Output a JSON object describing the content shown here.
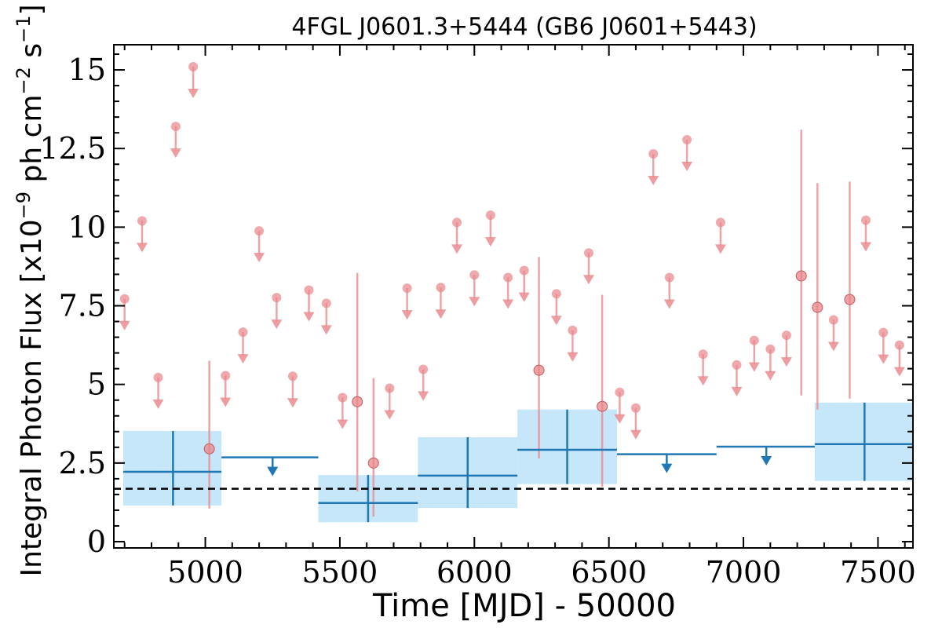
{
  "chart_data": {
    "type": "scatter",
    "title": "4FGL J0601.3+5444 (GB6 J0601+5443)",
    "xlabel": "Time [MJD] - 50000",
    "ylabel": "Integral Photon Flux [x10",
    "ylabel_exponent": "−9",
    "ylabel_units": " ph cm",
    "ylabel_cm_exponent": "−2",
    "ylabel_s": " s",
    "ylabel_s_exponent": "−1",
    "ylabel_close": "]",
    "xlim": [
      4660,
      7630
    ],
    "ylim": [
      -0.2,
      15.8
    ],
    "x_ticks": [
      5000,
      5500,
      6000,
      6500,
      7000,
      7500
    ],
    "x_tick_labels": [
      "5000",
      "5500",
      "6000",
      "6500",
      "7000",
      "7500"
    ],
    "y_ticks": [
      0,
      2.5,
      5,
      7.5,
      10,
      12.5,
      15
    ],
    "y_tick_labels": [
      "0",
      "2.5",
      "5",
      "7.5",
      "10",
      "12.5",
      "15"
    ],
    "reference_line": {
      "y": 1.68,
      "style": "dashed",
      "color": "#000000"
    },
    "colors": {
      "fine": "#e8858a",
      "coarse": "#1f77b4",
      "coarse_band": "#c6e7fa"
    },
    "series": [
      {
        "points": [
          {
            "x": 5015,
            "y": 2.95,
            "yerr_low": 1.05,
            "yerr_high": 5.75
          },
          {
            "x": 5565,
            "y": 4.45,
            "yerr_low": 1.6,
            "yerr_high": 8.55
          },
          {
            "x": 5625,
            "y": 2.5,
            "yerr_low": 0.8,
            "yerr_high": 5.2
          },
          {
            "x": 6240,
            "y": 5.45,
            "yerr_low": 2.65,
            "yerr_high": 9.05
          },
          {
            "x": 6475,
            "y": 4.3,
            "yerr_low": 1.75,
            "yerr_high": 7.85
          },
          {
            "x": 7215,
            "y": 8.45,
            "yerr_low": 4.65,
            "yerr_high": 13.1
          },
          {
            "x": 7275,
            "y": 7.45,
            "yerr_low": 4.2,
            "yerr_high": 11.4
          },
          {
            "x": 7395,
            "y": 7.7,
            "yerr_low": 4.55,
            "yerr_high": 11.45
          }
        ],
        "upper_limits": [
          {
            "x": 4700,
            "y": 7.72
          },
          {
            "x": 4765,
            "y": 10.2
          },
          {
            "x": 4825,
            "y": 5.22
          },
          {
            "x": 4890,
            "y": 13.2
          },
          {
            "x": 4955,
            "y": 15.1
          },
          {
            "x": 5075,
            "y": 5.28
          },
          {
            "x": 5140,
            "y": 6.66
          },
          {
            "x": 5200,
            "y": 9.88
          },
          {
            "x": 5265,
            "y": 7.76
          },
          {
            "x": 5325,
            "y": 5.26
          },
          {
            "x": 5385,
            "y": 8.0
          },
          {
            "x": 5450,
            "y": 7.58
          },
          {
            "x": 5510,
            "y": 4.58
          },
          {
            "x": 5685,
            "y": 4.88
          },
          {
            "x": 5750,
            "y": 8.06
          },
          {
            "x": 5810,
            "y": 5.48
          },
          {
            "x": 5875,
            "y": 8.08
          },
          {
            "x": 5935,
            "y": 10.15
          },
          {
            "x": 6000,
            "y": 8.48
          },
          {
            "x": 6060,
            "y": 10.38
          },
          {
            "x": 6125,
            "y": 8.4
          },
          {
            "x": 6185,
            "y": 8.62
          },
          {
            "x": 6305,
            "y": 7.88
          },
          {
            "x": 6365,
            "y": 6.72
          },
          {
            "x": 6425,
            "y": 9.18
          },
          {
            "x": 6540,
            "y": 4.75
          },
          {
            "x": 6600,
            "y": 4.25
          },
          {
            "x": 6665,
            "y": 12.33
          },
          {
            "x": 6725,
            "y": 8.4
          },
          {
            "x": 6790,
            "y": 12.78
          },
          {
            "x": 6850,
            "y": 5.96
          },
          {
            "x": 6915,
            "y": 10.15
          },
          {
            "x": 6975,
            "y": 5.62
          },
          {
            "x": 7040,
            "y": 6.4
          },
          {
            "x": 7100,
            "y": 6.12
          },
          {
            "x": 7160,
            "y": 6.56
          },
          {
            "x": 7335,
            "y": 7.05
          },
          {
            "x": 7455,
            "y": 10.22
          },
          {
            "x": 7520,
            "y": 6.65
          },
          {
            "x": 7580,
            "y": 6.25
          }
        ]
      },
      {
        "points": [
          {
            "x": 4880,
            "x_start": 4695,
            "x_end": 5060,
            "y": 2.22,
            "y_low": 1.15,
            "y_high": 3.52
          },
          {
            "x": 5605,
            "x_start": 5420,
            "x_end": 5790,
            "y": 1.23,
            "y_low": 0.62,
            "y_high": 2.12
          },
          {
            "x": 5975,
            "x_start": 5790,
            "x_end": 6160,
            "y": 2.1,
            "y_low": 1.07,
            "y_high": 3.32
          },
          {
            "x": 6345,
            "x_start": 6160,
            "x_end": 6530,
            "y": 2.92,
            "y_low": 1.83,
            "y_high": 4.2
          },
          {
            "x": 7450,
            "x_start": 7265,
            "x_end": 7635,
            "y": 3.1,
            "y_low": 1.93,
            "y_high": 4.42
          }
        ],
        "upper_limits": [
          {
            "x": 5250,
            "x_start": 5060,
            "x_end": 5420,
            "y": 2.68
          },
          {
            "x": 6715,
            "x_start": 6530,
            "x_end": 6900,
            "y": 2.78
          },
          {
            "x": 7085,
            "x_start": 6900,
            "x_end": 7265,
            "y": 3.02
          }
        ]
      }
    ]
  }
}
